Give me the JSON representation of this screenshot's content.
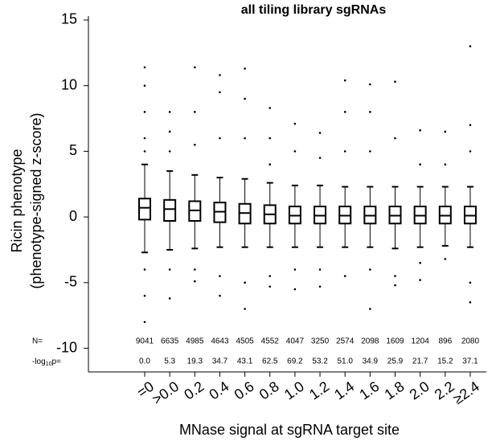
{
  "chart_data": {
    "type": "box",
    "title": "all tiling library sgRNAs",
    "ylabel": [
      "Ricin phenotype",
      "(phenotype-signed z-score)"
    ],
    "xlabel": "MNase signal at sgRNA target site",
    "categories": [
      "=0",
      ">0.0",
      "0.2",
      "0.4",
      "0.6",
      "0.8",
      "1.0",
      "1.2",
      "1.4",
      "1.6",
      "1.8",
      "2.0",
      "2.2",
      "≥2.4"
    ],
    "ylim": [
      -11.8,
      15.3
    ],
    "yticks": [
      -10,
      -5,
      0,
      5,
      10,
      15
    ],
    "color": "#000000",
    "boxes": [
      {
        "whislo": -2.7,
        "q1": -0.2,
        "med": 0.7,
        "q3": 1.4,
        "whishi": 4.0,
        "fliers": [
          11.4,
          10,
          8,
          6,
          5,
          -4,
          -6,
          -8
        ]
      },
      {
        "whislo": -2.5,
        "q1": -0.3,
        "med": 0.6,
        "q3": 1.3,
        "whishi": 3.5,
        "fliers": [
          8.0,
          6.5,
          5,
          -4,
          -6.2
        ]
      },
      {
        "whislo": -2.4,
        "q1": -0.3,
        "med": 0.5,
        "q3": 1.2,
        "whishi": 3.2,
        "fliers": [
          11.4,
          8,
          5.5,
          -4,
          -4.9
        ]
      },
      {
        "whislo": -2.3,
        "q1": -0.4,
        "med": 0.4,
        "q3": 1.1,
        "whishi": 3.0,
        "fliers": [
          10.8,
          9.5,
          6,
          -4.5,
          -6
        ]
      },
      {
        "whislo": -2.3,
        "q1": -0.5,
        "med": 0.3,
        "q3": 1.0,
        "whishi": 2.9,
        "fliers": [
          11.3,
          9,
          6,
          -5,
          -7
        ]
      },
      {
        "whislo": -2.3,
        "q1": -0.5,
        "med": 0.2,
        "q3": 0.9,
        "whishi": 2.6,
        "fliers": [
          8.3,
          6,
          4,
          -4.5,
          -5.3
        ]
      },
      {
        "whislo": -2.3,
        "q1": -0.5,
        "med": 0.1,
        "q3": 0.8,
        "whishi": 2.4,
        "fliers": [
          7.1,
          5,
          -4,
          -5.5
        ]
      },
      {
        "whislo": -2.3,
        "q1": -0.5,
        "med": 0.1,
        "q3": 0.8,
        "whishi": 2.4,
        "fliers": [
          6.4,
          4.5,
          -4,
          -5.3
        ]
      },
      {
        "whislo": -2.3,
        "q1": -0.5,
        "med": 0.1,
        "q3": 0.8,
        "whishi": 2.3,
        "fliers": [
          10.4,
          8,
          5,
          -4.5
        ]
      },
      {
        "whislo": -2.3,
        "q1": -0.5,
        "med": 0.1,
        "q3": 0.8,
        "whishi": 2.3,
        "fliers": [
          10.1,
          8,
          5,
          -4,
          -7
        ]
      },
      {
        "whislo": -2.4,
        "q1": -0.5,
        "med": 0.1,
        "q3": 0.8,
        "whishi": 2.3,
        "fliers": [
          10.3,
          6,
          -4.5,
          -5.2
        ]
      },
      {
        "whislo": -2.3,
        "q1": -0.5,
        "med": 0.1,
        "q3": 0.8,
        "whishi": 2.3,
        "fliers": [
          6.6,
          4,
          -3.5,
          -4.8
        ]
      },
      {
        "whislo": -2.2,
        "q1": -0.5,
        "med": 0.1,
        "q3": 0.8,
        "whishi": 2.3,
        "fliers": [
          6.5,
          4,
          -3.2
        ]
      },
      {
        "whislo": -2.3,
        "q1": -0.5,
        "med": 0.1,
        "q3": 0.8,
        "whishi": 2.3,
        "fliers": [
          13,
          7,
          5,
          -5,
          -6.5
        ]
      }
    ],
    "n_row": {
      "label": "N=",
      "values": [
        9041,
        6635,
        4985,
        4643,
        4505,
        4552,
        4047,
        3250,
        2574,
        2098,
        1609,
        1204,
        896,
        2080
      ]
    },
    "p_row": {
      "label": {
        "prefix": "-log",
        "sub": "10",
        "suffix": "p="
      },
      "values": [
        0,
        5.3,
        19.3,
        34.7,
        43.1,
        62.5,
        69.2,
        53.2,
        51.0,
        34.9,
        25.9,
        21.7,
        15.2,
        37.1
      ],
      "value_labels": [
        "0.0",
        "5.3",
        "19.3",
        "34.7",
        "43.1",
        "62.5",
        "69.2",
        "53.2",
        "51.0",
        "34.9",
        "25.9",
        "21.7",
        "15.2",
        "37.1"
      ]
    }
  }
}
